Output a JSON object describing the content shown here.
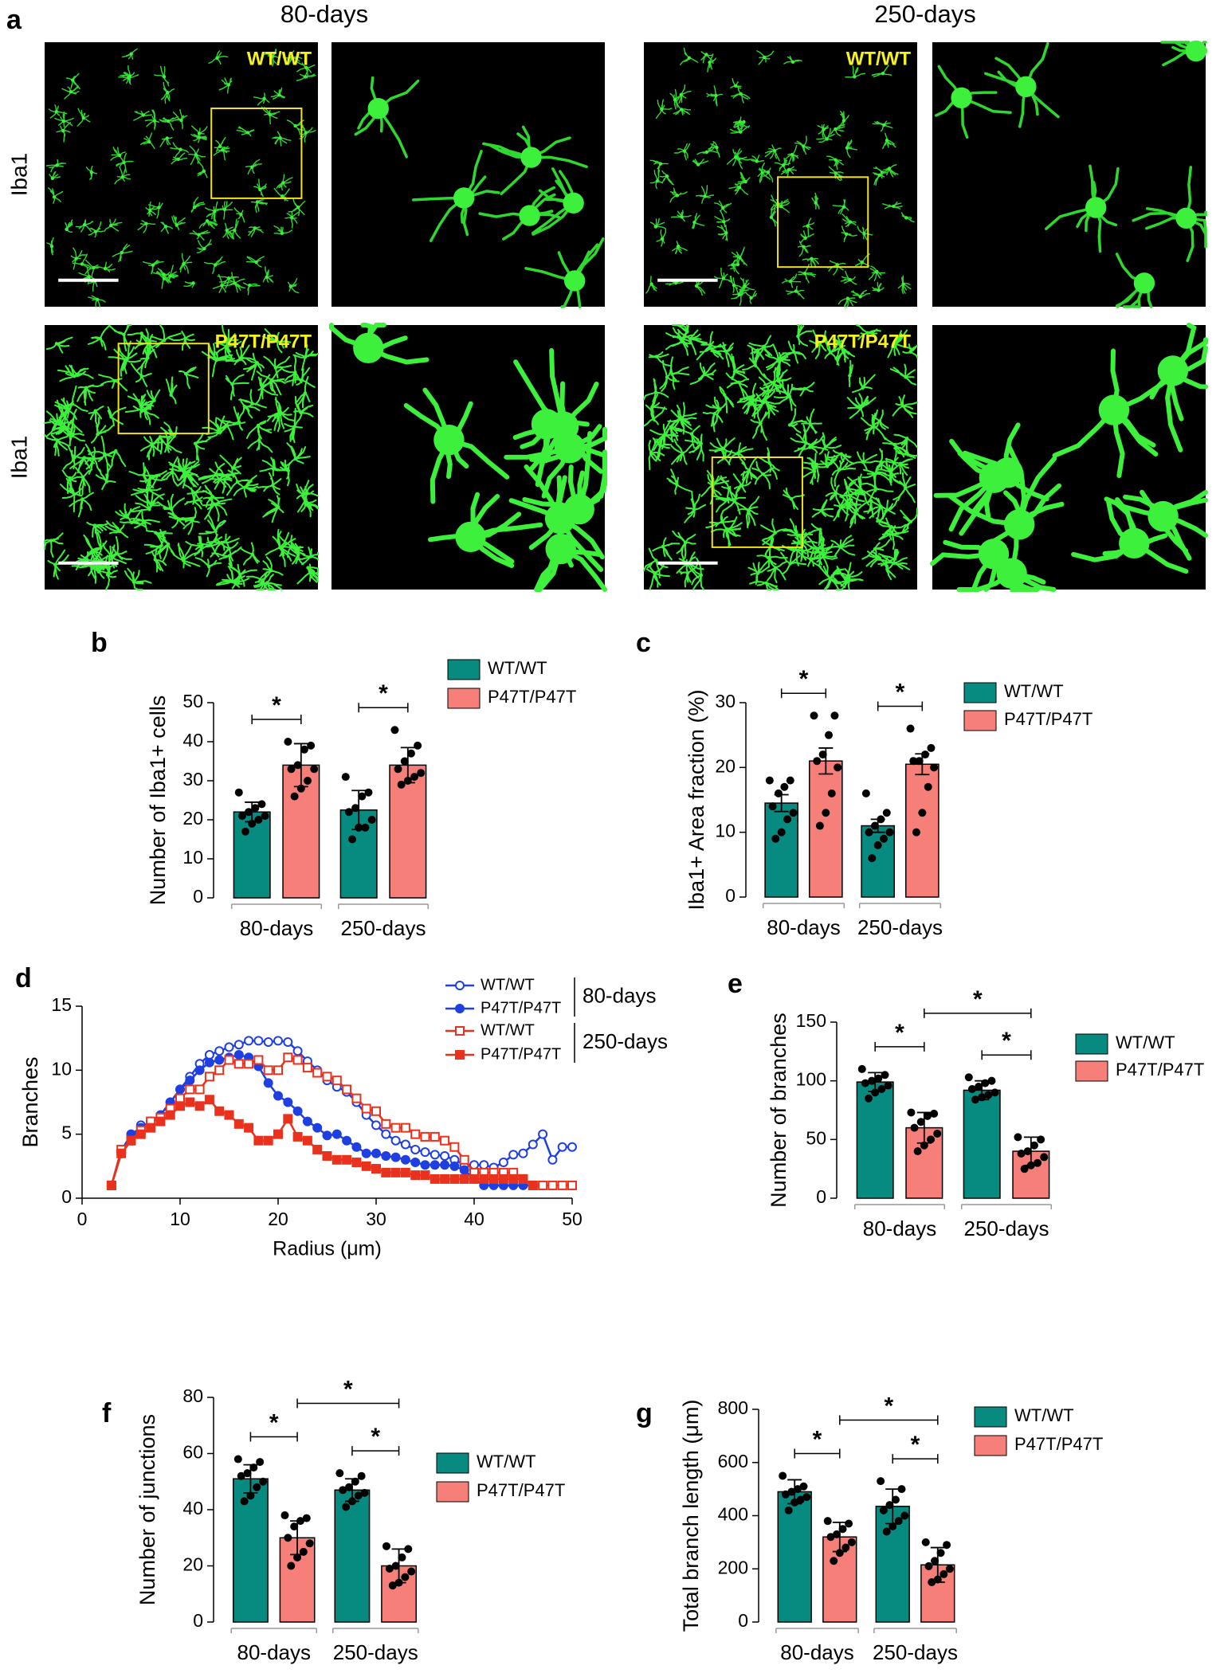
{
  "panel_a": {
    "panel": "a",
    "columns": [
      "80-days",
      "250-days"
    ],
    "row_label": "Iba1",
    "genotypes": [
      "WT/WT",
      "P47T/P47T"
    ]
  },
  "chart_data": [
    {
      "type": "bar",
      "panel": "b",
      "ylabel": "Number of Iba1+ cells",
      "categories": [
        "80-days",
        "250-days"
      ],
      "ylim": [
        0,
        50
      ],
      "yticks": [
        0,
        10,
        20,
        30,
        40,
        50
      ],
      "significance": [
        "*",
        "*"
      ],
      "series": [
        {
          "name": "WT/WT",
          "color": "#078a80",
          "values": [
            22,
            22.5
          ],
          "errors": [
            2.5,
            5
          ],
          "points": [
            [
              27,
              24,
              23,
              22,
              21,
              21,
              20,
              19,
              17
            ],
            [
              31,
              27,
              26,
              23,
              22,
              20,
              18,
              18,
              15
            ]
          ]
        },
        {
          "name": "P47T/P47T",
          "color": "#f68079",
          "values": [
            34,
            34
          ],
          "errors": [
            5.5,
            4.5
          ],
          "points": [
            [
              40,
              39,
              38,
              34,
              33,
              33,
              30,
              28,
              26
            ],
            [
              43,
              39,
              37,
              35,
              33,
              32,
              31,
              30,
              29
            ]
          ]
        }
      ]
    },
    {
      "type": "bar",
      "panel": "c",
      "ylabel": "Iba1+ Area fraction (%)",
      "categories": [
        "80-days",
        "250-days"
      ],
      "ylim": [
        0,
        30
      ],
      "yticks": [
        0,
        10,
        20,
        30
      ],
      "significance": [
        "*",
        "*"
      ],
      "series": [
        {
          "name": "WT/WT",
          "color": "#078a80",
          "values": [
            14.5,
            11
          ],
          "errors": [
            1.3,
            1
          ],
          "points": [
            [
              18,
              18,
              17,
              16,
              14,
              13,
              12,
              10,
              9
            ],
            [
              16,
              13,
              12,
              11,
              10,
              10,
              9,
              8,
              6
            ]
          ]
        },
        {
          "name": "P47T/P47T",
          "color": "#f68079",
          "values": [
            21,
            20.5
          ],
          "errors": [
            2,
            1.6
          ],
          "points": [
            [
              28,
              28,
              25,
              22,
              21,
              20,
              16,
              13,
              11
            ],
            [
              26,
              23,
              22,
              21,
              21,
              20,
              17,
              13,
              10
            ]
          ]
        }
      ]
    },
    {
      "type": "line",
      "panel": "d",
      "xlabel": "Radius (μm)",
      "ylabel": "Branches",
      "xlim": [
        0,
        50
      ],
      "xticks": [
        0,
        10,
        20,
        30,
        40,
        50
      ],
      "ylim": [
        0,
        15
      ],
      "yticks": [
        0,
        5,
        10,
        15
      ],
      "legend_groups": [
        "80-days",
        "250-days"
      ],
      "x": [
        3,
        4,
        5,
        6,
        7,
        8,
        9,
        10,
        11,
        12,
        13,
        14,
        15,
        16,
        17,
        18,
        19,
        20,
        21,
        22,
        23,
        24,
        25,
        26,
        27,
        28,
        29,
        30,
        31,
        32,
        33,
        34,
        35,
        36,
        37,
        38,
        39,
        40,
        41,
        42,
        43,
        44,
        45,
        46,
        47,
        48,
        49,
        50
      ],
      "series": [
        {
          "name": "WT/WT",
          "color": "#1f3fe0",
          "marker": "open-circle",
          "values": [
            1,
            3.5,
            4.5,
            5.7,
            5.8,
            6.5,
            7.5,
            8.5,
            9.5,
            10.5,
            11.2,
            11.5,
            11.8,
            12,
            12.3,
            12.3,
            12.2,
            12.3,
            12.2,
            11.5,
            10.7,
            10,
            9.2,
            8.7,
            8.3,
            7.5,
            6.5,
            5.7,
            5,
            4.5,
            4.2,
            3.8,
            3.6,
            3.4,
            3.3,
            3,
            2.6,
            2.6,
            2.6,
            2.4,
            2.8,
            3.4,
            3.5,
            4.2,
            5,
            3,
            4,
            4
          ]
        },
        {
          "name": "P47T/P47T",
          "color": "#1f3fe0",
          "marker": "circle",
          "values": [
            1,
            3.7,
            5,
            5.5,
            6,
            6.5,
            7.5,
            8.5,
            9.2,
            10,
            10.6,
            10.8,
            11,
            11.2,
            11,
            10.3,
            9,
            8,
            7.5,
            6.8,
            6,
            5.5,
            4.9,
            5,
            4.5,
            4,
            3.5,
            3.5,
            3.3,
            3.2,
            3,
            2.8,
            2.6,
            2.6,
            2.6,
            2.5,
            2.2,
            1.5,
            1,
            1,
            1,
            1,
            1,
            1,
            1,
            null,
            null,
            null
          ]
        },
        {
          "name": "WT/WT",
          "color": "#e8321e",
          "marker": "open-square",
          "values": [
            1,
            3.8,
            4.5,
            5.3,
            6,
            6.3,
            7,
            7.8,
            8.5,
            8.5,
            9.5,
            10,
            10.8,
            10.5,
            10.5,
            10.8,
            10,
            10,
            11,
            10.8,
            10.2,
            9.8,
            9.5,
            9.2,
            8.5,
            7.8,
            7,
            6.8,
            5.8,
            5.5,
            5.5,
            5,
            4.8,
            4.8,
            4.5,
            4,
            3,
            2,
            2,
            2,
            2,
            2,
            1.5,
            1,
            1,
            1,
            1,
            1
          ]
        },
        {
          "name": "P47T/P47T",
          "color": "#e8321e",
          "marker": "square",
          "values": [
            1,
            3.5,
            4.5,
            5,
            5.5,
            6,
            6.5,
            7.2,
            7.5,
            7.2,
            7.7,
            6.8,
            6.5,
            5.8,
            5.5,
            4.5,
            4.5,
            5,
            6.2,
            4.8,
            4.5,
            3.8,
            3.3,
            3,
            3,
            2.8,
            2.5,
            2.3,
            2,
            2,
            2,
            1.8,
            1.8,
            1.5,
            1.5,
            1.5,
            1.5,
            1.5,
            1.5,
            1.5,
            1.5,
            1.5,
            1.5,
            1,
            null,
            null,
            null,
            null
          ]
        }
      ]
    },
    {
      "type": "bar",
      "panel": "e",
      "ylabel": "Number of branches",
      "categories": [
        "80-days",
        "250-days"
      ],
      "ylim": [
        0,
        150
      ],
      "yticks": [
        0,
        50,
        100,
        150
      ],
      "significance": [
        "*",
        "*",
        "*"
      ],
      "series": [
        {
          "name": "WT/WT",
          "color": "#078a80",
          "values": [
            99,
            92
          ],
          "errors": [
            8,
            8
          ],
          "points": [
            [
              110,
              105,
              102,
              100,
              98,
              96,
              93,
              90,
              85
            ],
            [
              103,
              100,
              98,
              95,
              93,
              90,
              88,
              86,
              84
            ]
          ]
        },
        {
          "name": "P47T/P47T",
          "color": "#f68079",
          "values": [
            60,
            40
          ],
          "errors": [
            13,
            12
          ],
          "points": [
            [
              73,
              72,
              70,
              65,
              60,
              55,
              50,
              45,
              40
            ],
            [
              52,
              50,
              45,
              40,
              38,
              35,
              30,
              28,
              25
            ]
          ]
        }
      ]
    },
    {
      "type": "bar",
      "panel": "f",
      "ylabel": "Number of junctions",
      "categories": [
        "80-days",
        "250-days"
      ],
      "ylim": [
        0,
        80
      ],
      "yticks": [
        0,
        20,
        40,
        60,
        80
      ],
      "significance": [
        "*",
        "*",
        "*"
      ],
      "series": [
        {
          "name": "WT/WT",
          "color": "#078a80",
          "values": [
            51,
            47
          ],
          "errors": [
            5,
            4
          ],
          "points": [
            [
              58,
              57,
              55,
              53,
              52,
              50,
              48,
              45,
              43
            ],
            [
              53,
              52,
              50,
              48,
              47,
              46,
              45,
              43,
              41
            ]
          ]
        },
        {
          "name": "P47T/P47T",
          "color": "#f68079",
          "values": [
            30,
            20
          ],
          "errors": [
            6,
            6
          ],
          "points": [
            [
              38,
              37,
              36,
              34,
              30,
              28,
              25,
              23,
              20
            ],
            [
              27,
              26,
              23,
              20,
              19,
              18,
              16,
              14,
              13
            ]
          ]
        }
      ]
    },
    {
      "type": "bar",
      "panel": "g",
      "ylabel": "Total branch length (μm)",
      "categories": [
        "80-days",
        "250-days"
      ],
      "ylim": [
        0,
        800
      ],
      "yticks": [
        0,
        200,
        400,
        600,
        800
      ],
      "significance": [
        "*",
        "*",
        "*"
      ],
      "series": [
        {
          "name": "WT/WT",
          "color": "#078a80",
          "values": [
            490,
            435
          ],
          "errors": [
            45,
            65
          ],
          "points": [
            [
              550,
              510,
              500,
              490,
              480,
              470,
              460,
              450,
              420
            ],
            [
              530,
              500,
              460,
              440,
              420,
              400,
              380,
              360,
              340
            ]
          ]
        },
        {
          "name": "P47T/P47T",
          "color": "#f68079",
          "values": [
            320,
            215
          ],
          "errors": [
            55,
            65
          ],
          "points": [
            [
              380,
              370,
              350,
              330,
              320,
              300,
              280,
              260,
              230
            ],
            [
              300,
              290,
              260,
              230,
              210,
              200,
              180,
              160,
              150
            ]
          ]
        }
      ]
    }
  ]
}
